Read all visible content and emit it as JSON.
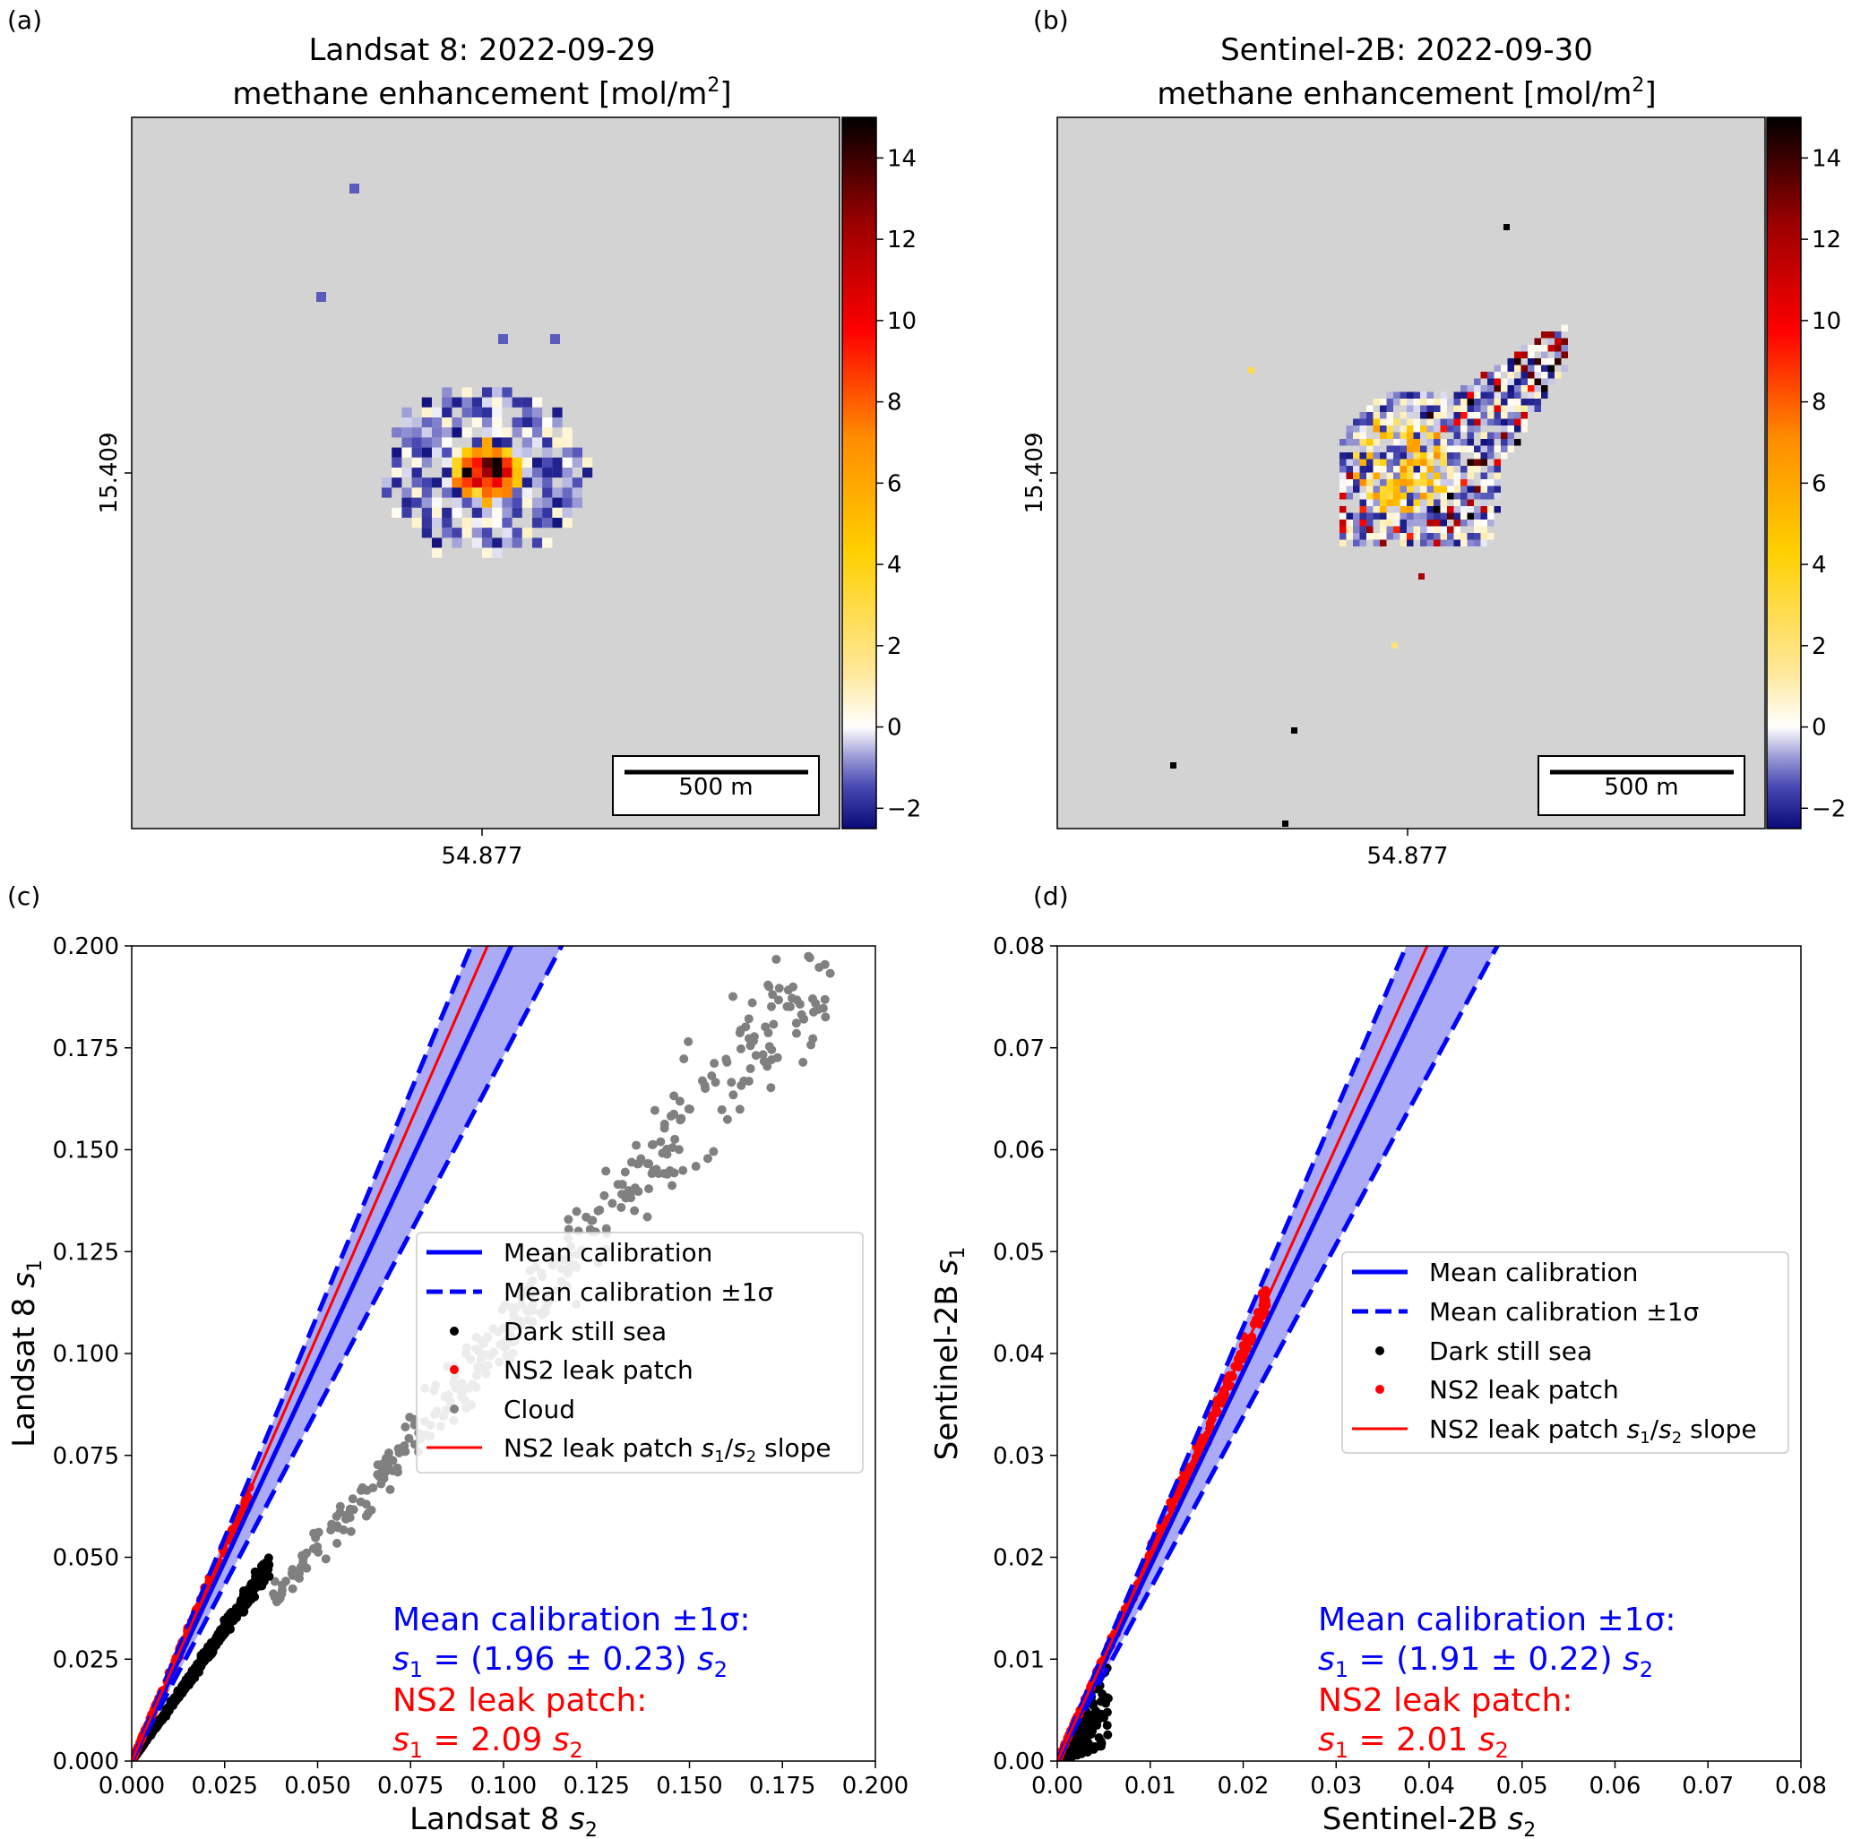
{
  "panels": {
    "a": {
      "letter": "(a)",
      "title_line1": "Landsat 8: 2022-09-29",
      "title_line2_prefix": "methane enhancement [mol/m",
      "title_sup": "2",
      "title_suffix": "]",
      "y_tick_label": "15.409",
      "x_tick_label": "54.877",
      "scalebar_label": "500 m"
    },
    "b": {
      "letter": "(b)",
      "title_line1": "Sentinel-2B: 2022-09-30",
      "title_line2_prefix": "methane enhancement [mol/m",
      "title_sup": "2",
      "title_suffix": "]",
      "y_tick_label": "15.409",
      "x_tick_label": "54.877",
      "scalebar_label": "500 m"
    },
    "c": {
      "letter": "(c)"
    },
    "d": {
      "letter": "(d)"
    }
  },
  "colorbar": {
    "ticks": [
      14,
      12,
      10,
      8,
      6,
      4,
      2,
      0,
      -2
    ],
    "tick_labels": [
      "14",
      "12",
      "10",
      "8",
      "6",
      "4",
      "2",
      "0",
      "−2"
    ],
    "range": [
      -2.5,
      15
    ],
    "colors": [
      "#0a0a78",
      "#4a4ab4",
      "#9a9ad6",
      "#ffffff",
      "#ffe89a",
      "#ffd000",
      "#ff8c00",
      "#ff0000",
      "#9c0000",
      "#000000"
    ]
  },
  "colors": {
    "mean_calibration": "#0000ff",
    "band_fill": "#aaaaf6",
    "ns2": "#ff0000",
    "dark_sea": "#000000",
    "cloud": "#808080",
    "map_background": "#d3d3d3"
  },
  "chart_data": [
    {
      "type": "heatmap",
      "panel": "a",
      "title": "Landsat 8: 2022-09-29 methane enhancement [mol/m2]",
      "value_range": [
        -2.5,
        15
      ],
      "x_tick": "54.877",
      "y_tick": "15.409",
      "scalebar": "500 m"
    },
    {
      "type": "heatmap",
      "panel": "b",
      "title": "Sentinel-2B: 2022-09-30 methane enhancement [mol/m2]",
      "value_range": [
        -2.5,
        15
      ],
      "x_tick": "54.877",
      "y_tick": "15.409",
      "scalebar": "500 m"
    },
    {
      "type": "scatter",
      "panel": "c",
      "xlabel_main": "Landsat 8 ",
      "xlabel_var": "s",
      "xlabel_sub": "2",
      "ylabel_main": "Landsat 8 ",
      "ylabel_var": "s",
      "ylabel_sub": "1",
      "xlim": [
        0,
        0.2
      ],
      "ylim": [
        0,
        0.2
      ],
      "xticks": [
        0,
        0.025,
        0.05,
        0.075,
        0.1,
        0.125,
        0.15,
        0.175,
        0.2
      ],
      "xtick_labels": [
        "0.000",
        "0.025",
        "0.050",
        "0.075",
        "0.100",
        "0.125",
        "0.150",
        "0.175",
        "0.200"
      ],
      "yticks": [
        0,
        0.025,
        0.05,
        0.075,
        0.1,
        0.125,
        0.15,
        0.175,
        0.2
      ],
      "ytick_labels": [
        "0.000",
        "0.025",
        "0.050",
        "0.075",
        "0.100",
        "0.125",
        "0.150",
        "0.175",
        "0.200"
      ],
      "calibration": {
        "mean_slope": 1.96,
        "sigma": 0.23
      },
      "ns2_slope": 2.09,
      "clusters": {
        "dark_sea": {
          "slope": 1.3,
          "x_max": 0.037,
          "count": 700,
          "spread": 0.09
        },
        "ns2": {
          "slope": 2.09,
          "x_max": 0.032,
          "count": 170,
          "spread": 0.05
        },
        "cloud": {
          "slope": 1.05,
          "x_min": 0.038,
          "x_max": 0.188,
          "count": 380,
          "spread": 0.13
        }
      },
      "legend": [
        {
          "label": "Mean calibration",
          "marker": "solid-line"
        },
        {
          "label": "Mean calibration ±1σ",
          "marker": "dashed-line"
        },
        {
          "label": "Dark still sea",
          "marker": "black-dot"
        },
        {
          "label": "NS2 leak patch",
          "marker": "red-dot"
        },
        {
          "label": "Cloud",
          "marker": "grey-dot"
        },
        {
          "label": "NS2 leak patch s1/s2 slope",
          "marker": "red-line"
        }
      ],
      "annotation": {
        "cal_title": "Mean calibration ±1σ:",
        "cal_eq_var": "s",
        "cal_eq_sub": "1",
        "cal_eq_mid": " = (1.96 ± 0.23) ",
        "cal_eq_var2": "s",
        "cal_eq_sub2": "2",
        "ns2_title": "NS2 leak patch:",
        "ns2_eq_var": "s",
        "ns2_eq_sub": "1",
        "ns2_eq_mid": " = 2.09 ",
        "ns2_eq_var2": "s",
        "ns2_eq_sub2": "2"
      }
    },
    {
      "type": "scatter",
      "panel": "d",
      "xlabel_main": "Sentinel-2B ",
      "xlabel_var": "s",
      "xlabel_sub": "2",
      "ylabel_main": "Sentinel-2B ",
      "ylabel_var": "s",
      "ylabel_sub": "1",
      "xlim": [
        0,
        0.08
      ],
      "ylim": [
        0,
        0.08
      ],
      "xticks": [
        0,
        0.01,
        0.02,
        0.03,
        0.04,
        0.05,
        0.06,
        0.07,
        0.08
      ],
      "xtick_labels": [
        "0.00",
        "0.01",
        "0.02",
        "0.03",
        "0.04",
        "0.05",
        "0.06",
        "0.07",
        "0.08"
      ],
      "yticks": [
        0,
        0.01,
        0.02,
        0.03,
        0.04,
        0.05,
        0.06,
        0.07,
        0.08
      ],
      "ytick_labels": [
        "0.00",
        "0.01",
        "0.02",
        "0.03",
        "0.04",
        "0.05",
        "0.06",
        "0.07",
        "0.08"
      ],
      "calibration": {
        "mean_slope": 1.91,
        "sigma": 0.22
      },
      "ns2_slope": 2.01,
      "clusters": {
        "dark_sea": {
          "slope": 1.0,
          "x_max": 0.0055,
          "count": 200,
          "spread": 0.8
        },
        "ns2": {
          "slope": 2.01,
          "x_max": 0.0225,
          "count": 260,
          "spread": 0.05
        }
      },
      "legend": [
        {
          "label": "Mean calibration",
          "marker": "solid-line"
        },
        {
          "label": "Mean calibration ±1σ",
          "marker": "dashed-line"
        },
        {
          "label": "Dark still sea",
          "marker": "black-dot"
        },
        {
          "label": "NS2 leak patch",
          "marker": "red-dot"
        },
        {
          "label": "NS2 leak patch s1/s2 slope",
          "marker": "red-line"
        }
      ],
      "annotation": {
        "cal_title": "Mean calibration ±1σ:",
        "cal_eq_var": "s",
        "cal_eq_sub": "1",
        "cal_eq_mid": " = (1.91 ± 0.22) ",
        "cal_eq_var2": "s",
        "cal_eq_sub2": "2",
        "ns2_title": "NS2 leak patch:",
        "ns2_eq_var": "s",
        "ns2_eq_sub": "1",
        "ns2_eq_mid": " = 2.01 ",
        "ns2_eq_var2": "s",
        "ns2_eq_sub2": "2"
      }
    }
  ]
}
